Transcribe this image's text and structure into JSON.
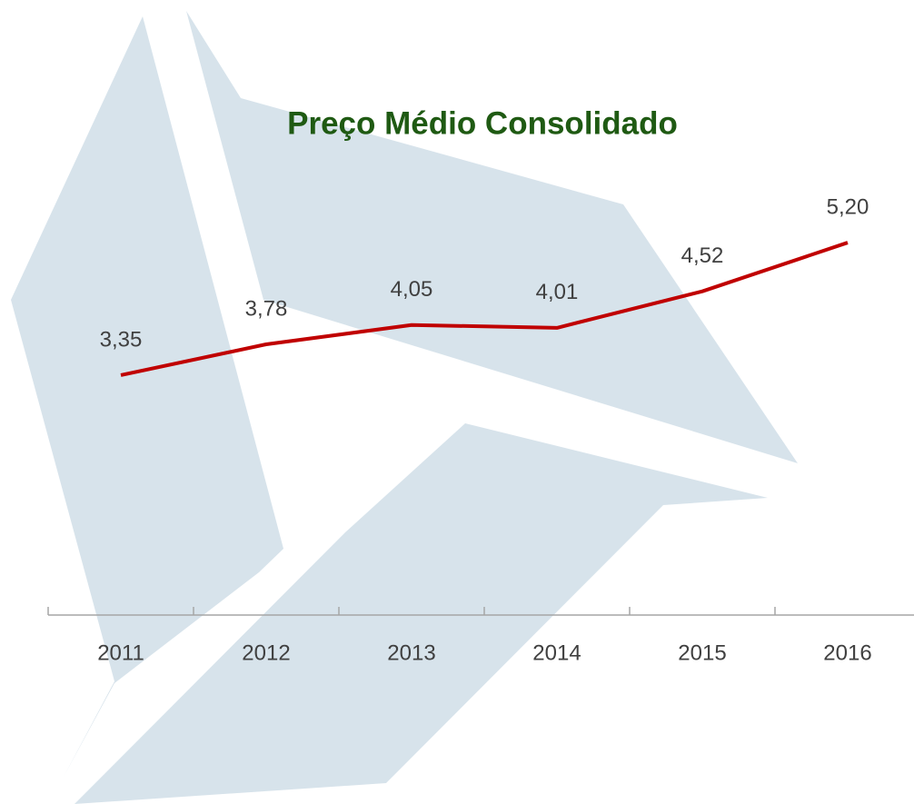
{
  "chart_data": {
    "type": "line",
    "title": "Preço Médio Consolidado",
    "categories": [
      "2011",
      "2012",
      "2013",
      "2014",
      "2015",
      "2016"
    ],
    "series": [
      {
        "name": null,
        "color": "#c00000",
        "values": [
          3.35,
          3.78,
          4.05,
          4.01,
          4.52,
          5.2
        ],
        "value_labels": [
          "3,35",
          "3,78",
          "4,05",
          "4,01",
          "4,52",
          "5,20"
        ]
      }
    ],
    "ylim": [
      0,
      6
    ]
  }
}
